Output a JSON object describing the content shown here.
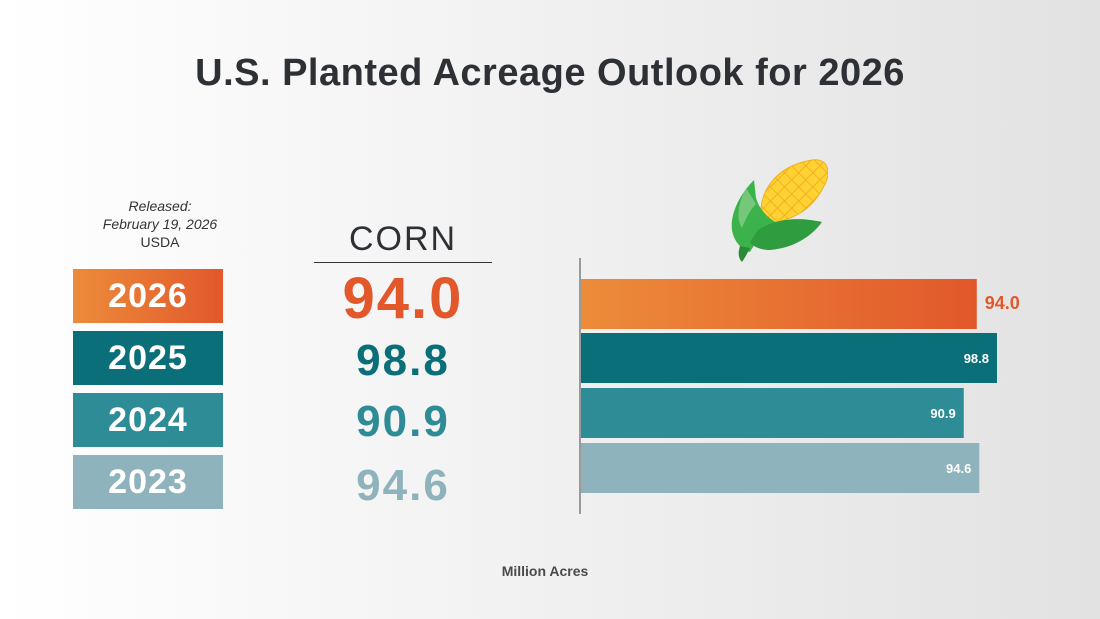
{
  "title": "U.S. Planted Acreage Outlook for 2026",
  "release": {
    "line1": "Released:",
    "line2": "February 19, 2026",
    "line3": "USDA"
  },
  "crop_label": "CORN",
  "units_label": "Million Acres",
  "icon": "corn-icon",
  "colors": {
    "2026": "#e2582b",
    "2025": "#0a6f78",
    "2024": "#2e8c97",
    "2023": "#8fb3bc",
    "2026_gradient_start": "#ec8c3a"
  },
  "rows": [
    {
      "year": "2026",
      "value_text": "94.0"
    },
    {
      "year": "2025",
      "value_text": "98.8"
    },
    {
      "year": "2024",
      "value_text": "90.9"
    },
    {
      "year": "2023",
      "value_text": "94.6"
    }
  ],
  "chart_data": {
    "type": "bar",
    "orientation": "horizontal",
    "categories": [
      "2026",
      "2025",
      "2024",
      "2023"
    ],
    "values": [
      94.0,
      98.8,
      90.9,
      94.6
    ],
    "title": "U.S. Planted Acreage Outlook for 2026",
    "xlabel": "Million Acres",
    "ylabel": "",
    "xlim": [
      0,
      100
    ],
    "grid": false,
    "data_labels": [
      "94.0",
      "98.8",
      "90.9",
      "94.6"
    ]
  }
}
